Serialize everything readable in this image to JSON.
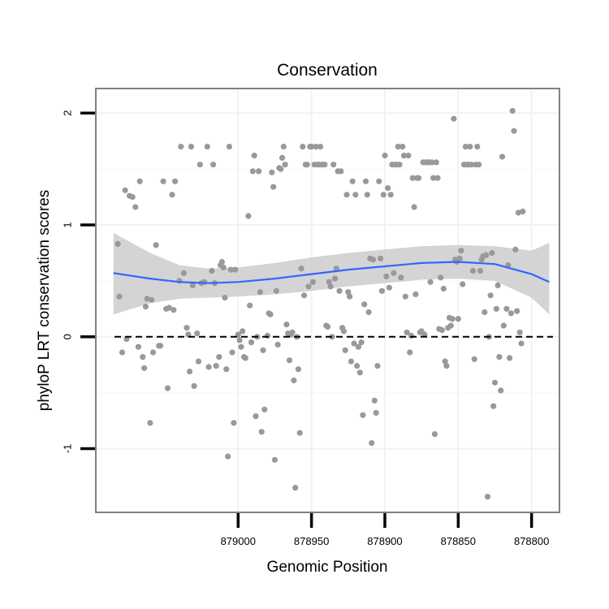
{
  "chart_data": {
    "type": "scatter",
    "title": "Conservation",
    "xlabel": "Genomic Position",
    "ylabel": "phyloP LRT conservation scores",
    "xlim": [
      879097,
      878781
    ],
    "ylim": [
      -1.57,
      2.22
    ],
    "x_reversed": true,
    "x_ticks": [
      879000,
      878950,
      878900,
      878850,
      878800
    ],
    "x_tick_labels": [
      "879000",
      "878950",
      "878900",
      "878850",
      "878800"
    ],
    "y_ticks": [
      -1,
      0,
      1,
      2
    ],
    "y_tick_labels": [
      "-1",
      "0",
      "1",
      "2"
    ],
    "grid": true,
    "background": "#ffffff",
    "colors": {
      "points": "#999999",
      "smooth_line": "#3366ff",
      "ribbon": "#cccccc",
      "reference_line": "#000000",
      "panel_border": "#808080"
    },
    "reference_line": {
      "y": 0,
      "style": "dashed"
    },
    "smooth": {
      "x": [
        879085,
        879060,
        879040,
        879020,
        879000,
        878975,
        878950,
        878925,
        878900,
        878875,
        878850,
        878825,
        878800,
        878788
      ],
      "y": [
        0.57,
        0.52,
        0.49,
        0.48,
        0.49,
        0.52,
        0.56,
        0.6,
        0.63,
        0.66,
        0.67,
        0.65,
        0.56,
        0.49
      ],
      "lower": [
        0.2,
        0.3,
        0.34,
        0.35,
        0.36,
        0.38,
        0.41,
        0.45,
        0.48,
        0.51,
        0.52,
        0.5,
        0.35,
        0.2
      ],
      "upper": [
        0.93,
        0.75,
        0.64,
        0.61,
        0.62,
        0.66,
        0.71,
        0.75,
        0.78,
        0.81,
        0.82,
        0.81,
        0.77,
        0.84
      ]
    },
    "points": [
      [
        879082,
        0.83
      ],
      [
        879081,
        0.36
      ],
      [
        879079,
        -0.14
      ],
      [
        879077,
        1.31
      ],
      [
        879076,
        -0.02
      ],
      [
        879074,
        1.26
      ],
      [
        879072,
        1.25
      ],
      [
        879070,
        1.16
      ],
      [
        879068,
        -0.09
      ],
      [
        879067,
        1.39
      ],
      [
        879065,
        -0.18
      ],
      [
        879064,
        -0.28
      ],
      [
        879063,
        0.27
      ],
      [
        879062,
        0.34
      ],
      [
        879060,
        -0.77
      ],
      [
        879059,
        0.33
      ],
      [
        879058,
        -0.14
      ],
      [
        879056,
        0.82
      ],
      [
        879054,
        -0.08
      ],
      [
        879053,
        -0.08
      ],
      [
        879051,
        1.39
      ],
      [
        879049,
        0.25
      ],
      [
        879048,
        -0.46
      ],
      [
        879047,
        0.26
      ],
      [
        879045,
        1.27
      ],
      [
        879044,
        0.24
      ],
      [
        879043,
        1.39
      ],
      [
        879040,
        0.5
      ],
      [
        879039,
        1.7
      ],
      [
        879037,
        0.57
      ],
      [
        879035,
        0.08
      ],
      [
        879034,
        0.02
      ],
      [
        879033,
        -0.31
      ],
      [
        879032,
        1.7
      ],
      [
        879031,
        0.46
      ],
      [
        879030,
        -0.44
      ],
      [
        879028,
        0.03
      ],
      [
        879027,
        -0.22
      ],
      [
        879026,
        1.54
      ],
      [
        879025,
        0.48
      ],
      [
        879023,
        0.49
      ],
      [
        879021,
        1.7
      ],
      [
        879020,
        -0.27
      ],
      [
        879018,
        0.59
      ],
      [
        879017,
        1.54
      ],
      [
        879016,
        0.48
      ],
      [
        879015,
        -0.26
      ],
      [
        879013,
        -0.18
      ],
      [
        879012,
        0.64
      ],
      [
        879011,
        0.67
      ],
      [
        879010,
        0.62
      ],
      [
        879009,
        0.35
      ],
      [
        879008,
        -0.29
      ],
      [
        879007,
        -1.07
      ],
      [
        879006,
        1.7
      ],
      [
        879005,
        0.6
      ],
      [
        879004,
        -0.14
      ],
      [
        879003,
        -0.77
      ],
      [
        879002,
        0.6
      ],
      [
        879000,
        0.02
      ],
      [
        878999,
        -0.03
      ],
      [
        878998,
        -0.09
      ],
      [
        878997,
        0.05
      ],
      [
        878996,
        -0.18
      ],
      [
        878995,
        -0.19
      ],
      [
        878993,
        1.08
      ],
      [
        878992,
        0.28
      ],
      [
        878991,
        -0.05
      ],
      [
        878990,
        1.48
      ],
      [
        878989,
        1.62
      ],
      [
        878988,
        -0.71
      ],
      [
        878987,
        0.0
      ],
      [
        878986,
        1.48
      ],
      [
        878985,
        0.4
      ],
      [
        878984,
        -0.85
      ],
      [
        878983,
        -0.12
      ],
      [
        878982,
        -0.65
      ],
      [
        878980,
        0.01
      ],
      [
        878979,
        0.21
      ],
      [
        878978,
        0.2
      ],
      [
        878977,
        1.47
      ],
      [
        878976,
        1.34
      ],
      [
        878975,
        -1.1
      ],
      [
        878974,
        0.41
      ],
      [
        878973,
        -0.07
      ],
      [
        878972,
        1.51
      ],
      [
        878971,
        1.5
      ],
      [
        878970,
        1.6
      ],
      [
        878969,
        1.7
      ],
      [
        878968,
        1.54
      ],
      [
        878967,
        0.11
      ],
      [
        878966,
        0.03
      ],
      [
        878965,
        -0.21
      ],
      [
        878964,
        0.02
      ],
      [
        878963,
        0.04
      ],
      [
        878962,
        -0.39
      ],
      [
        878961,
        -1.35
      ],
      [
        878960,
        0.0
      ],
      [
        878959,
        -0.29
      ],
      [
        878958,
        -0.86
      ],
      [
        878957,
        0.61
      ],
      [
        878956,
        1.7
      ],
      [
        878955,
        0.37
      ],
      [
        878954,
        1.54
      ],
      [
        878953,
        1.54
      ],
      [
        878952,
        0.45
      ],
      [
        878951,
        1.7
      ],
      [
        878950,
        1.7
      ],
      [
        878949,
        0.49
      ],
      [
        878948,
        1.54
      ],
      [
        878947,
        1.7
      ],
      [
        878946,
        1.54
      ],
      [
        878945,
        1.54
      ],
      [
        878944,
        1.7
      ],
      [
        878943,
        1.54
      ],
      [
        878942,
        1.54
      ],
      [
        878941,
        1.54
      ],
      [
        878940,
        0.1
      ],
      [
        878939,
        0.09
      ],
      [
        878938,
        0.49
      ],
      [
        878937,
        0.45
      ],
      [
        878936,
        0.0
      ],
      [
        878935,
        1.54
      ],
      [
        878934,
        0.52
      ],
      [
        878933,
        0.61
      ],
      [
        878932,
        1.48
      ],
      [
        878931,
        0.41
      ],
      [
        878930,
        1.48
      ],
      [
        878929,
        0.08
      ],
      [
        878928,
        0.05
      ],
      [
        878927,
        -0.12
      ],
      [
        878926,
        1.27
      ],
      [
        878925,
        0.4
      ],
      [
        878924,
        0.36
      ],
      [
        878923,
        -0.22
      ],
      [
        878922,
        1.39
      ],
      [
        878921,
        -0.06
      ],
      [
        878920,
        1.27
      ],
      [
        878919,
        -0.26
      ],
      [
        878918,
        -0.09
      ],
      [
        878917,
        -0.32
      ],
      [
        878916,
        -0.05
      ],
      [
        878915,
        -0.7
      ],
      [
        878914,
        0.29
      ],
      [
        878913,
        1.39
      ],
      [
        878912,
        1.27
      ],
      [
        878911,
        0.22
      ],
      [
        878910,
        0.7
      ],
      [
        878909,
        -0.95
      ],
      [
        878908,
        0.69
      ],
      [
        878907,
        -0.57
      ],
      [
        878906,
        -0.68
      ],
      [
        878905,
        -0.26
      ],
      [
        878904,
        1.39
      ],
      [
        878903,
        0.7
      ],
      [
        878902,
        0.41
      ],
      [
        878901,
        1.27
      ],
      [
        878900,
        1.62
      ],
      [
        878899,
        0.54
      ],
      [
        878898,
        1.33
      ],
      [
        878897,
        0.44
      ],
      [
        878896,
        1.27
      ],
      [
        878895,
        1.54
      ],
      [
        878894,
        0.57
      ],
      [
        878893,
        1.54
      ],
      [
        878892,
        1.54
      ],
      [
        878891,
        1.7
      ],
      [
        878890,
        1.54
      ],
      [
        878889,
        0.53
      ],
      [
        878888,
        1.7
      ],
      [
        878887,
        1.62
      ],
      [
        878886,
        0.36
      ],
      [
        878885,
        0.04
      ],
      [
        878884,
        1.62
      ],
      [
        878883,
        -0.14
      ],
      [
        878882,
        0.01
      ],
      [
        878881,
        1.42
      ],
      [
        878880,
        1.16
      ],
      [
        878879,
        0.38
      ],
      [
        878878,
        1.42
      ],
      [
        878877,
        1.42
      ],
      [
        878876,
        0.04
      ],
      [
        878875,
        0.05
      ],
      [
        878874,
        1.56
      ],
      [
        878873,
        0.02
      ],
      [
        878872,
        1.56
      ],
      [
        878871,
        1.56
      ],
      [
        878870,
        1.56
      ],
      [
        878869,
        0.49
      ],
      [
        878868,
        1.56
      ],
      [
        878867,
        1.42
      ],
      [
        878866,
        -0.87
      ],
      [
        878865,
        1.56
      ],
      [
        878864,
        1.42
      ],
      [
        878863,
        0.07
      ],
      [
        878862,
        0.53
      ],
      [
        878861,
        0.06
      ],
      [
        878860,
        0.43
      ],
      [
        878859,
        -0.22
      ],
      [
        878858,
        -0.26
      ],
      [
        878857,
        0.08
      ],
      [
        878856,
        0.17
      ],
      [
        878855,
        0.1
      ],
      [
        878854,
        0.16
      ],
      [
        878853,
        1.95
      ],
      [
        878852,
        0.69
      ],
      [
        878851,
        0.67
      ],
      [
        878850,
        0.16
      ],
      [
        878849,
        0.7
      ],
      [
        878848,
        0.77
      ],
      [
        878847,
        0.47
      ],
      [
        878846,
        1.54
      ],
      [
        878845,
        1.7
      ],
      [
        878844,
        1.54
      ],
      [
        878843,
        1.54
      ],
      [
        878842,
        1.7
      ],
      [
        878841,
        1.54
      ],
      [
        878840,
        0.59
      ],
      [
        878839,
        -0.2
      ],
      [
        878838,
        1.54
      ],
      [
        878837,
        1.7
      ],
      [
        878836,
        1.54
      ],
      [
        878835,
        0.59
      ],
      [
        878834,
        0.69
      ],
      [
        878833,
        0.72
      ],
      [
        878832,
        0.22
      ],
      [
        878831,
        0.73
      ],
      [
        878830,
        -1.43
      ],
      [
        878829,
        0.0
      ],
      [
        878828,
        0.37
      ],
      [
        878827,
        0.75
      ],
      [
        878826,
        -0.62
      ],
      [
        878825,
        -0.41
      ],
      [
        878824,
        0.25
      ],
      [
        878823,
        0.46
      ],
      [
        878822,
        -0.18
      ],
      [
        878821,
        -0.48
      ],
      [
        878820,
        1.61
      ],
      [
        878819,
        0.1
      ],
      [
        878817,
        0.25
      ],
      [
        878816,
        0.64
      ],
      [
        878815,
        -0.19
      ],
      [
        878814,
        0.21
      ],
      [
        878813,
        2.02
      ],
      [
        878812,
        1.84
      ],
      [
        878811,
        0.78
      ],
      [
        878810,
        0.23
      ],
      [
        878809,
        1.11
      ],
      [
        878808,
        0.04
      ],
      [
        878807,
        -0.06
      ],
      [
        878806,
        1.12
      ]
    ]
  }
}
